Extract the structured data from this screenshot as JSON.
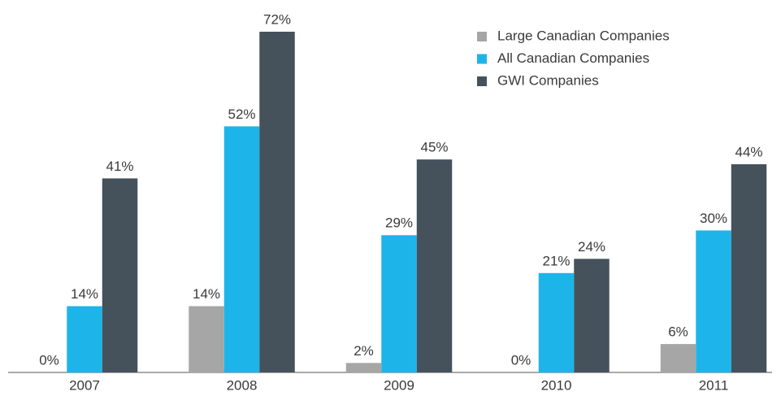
{
  "chart_data": {
    "type": "bar",
    "categories": [
      "2007",
      "2008",
      "2009",
      "2010",
      "2011"
    ],
    "series": [
      {
        "name": "Large Canadian Companies",
        "color": "#a6a6a6",
        "values": [
          0,
          14,
          2,
          0,
          6
        ],
        "value_labels": [
          "0%",
          "14%",
          "2%",
          "0%",
          "6%"
        ]
      },
      {
        "name": "All Canadian Companies",
        "color": "#1db5e9",
        "values": [
          14,
          52,
          29,
          21,
          30
        ],
        "value_labels": [
          "14%",
          "52%",
          "29%",
          "21%",
          "30%"
        ]
      },
      {
        "name": "GWI Companies",
        "color": "#45525c",
        "values": [
          41,
          72,
          45,
          24,
          44
        ],
        "value_labels": [
          "41%",
          "72%",
          "45%",
          "24%",
          "44%"
        ]
      }
    ],
    "ylim": [
      0,
      72
    ],
    "legend": "top-right"
  }
}
